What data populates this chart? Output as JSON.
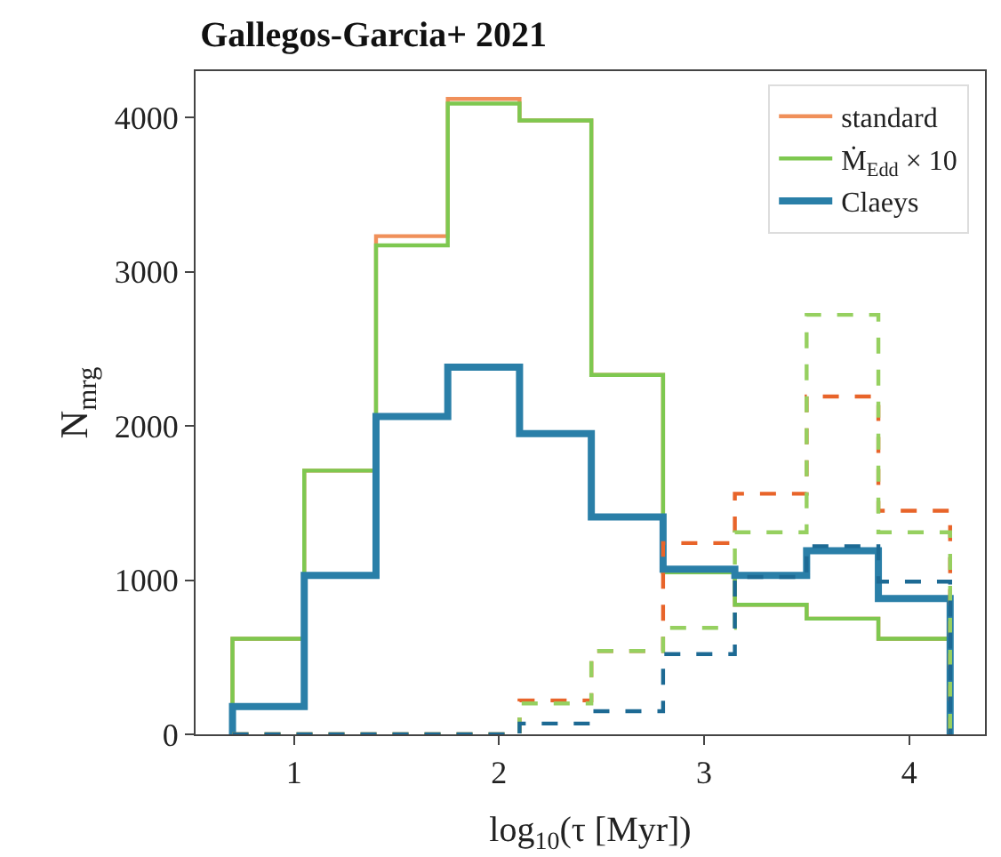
{
  "chart_data": {
    "type": "histogram",
    "title": "Gallegos-Garcia+ 2021",
    "xlabel": "log$_{10}$(τ [Myr])",
    "ylabel": "N$_{mrg}$",
    "bins": [
      0.7,
      1.05,
      1.4,
      1.75,
      2.1,
      2.45,
      2.8,
      3.15,
      3.5,
      3.85,
      4.2
    ],
    "series": [
      {
        "name": "standard",
        "color": "#f0905a",
        "values": [
          620,
          1710,
          3230,
          4120,
          3980,
          2330,
          1050,
          840,
          750,
          620
        ]
      },
      {
        "name": "Ṁ$_{Edd}$ × 10",
        "color": "#7ec850",
        "values": [
          620,
          1710,
          3170,
          4090,
          3980,
          2330,
          1050,
          840,
          750,
          620
        ]
      },
      {
        "name": "Claeys",
        "color": "#2a7fa8",
        "values": [
          180,
          1030,
          2060,
          2380,
          1950,
          1410,
          1070,
          1030,
          1190,
          880
        ]
      },
      {
        "color": "#e8642a",
        "line_style": "dashed",
        "values": [
          0,
          0,
          0,
          0,
          220,
          540,
          1240,
          1560,
          2190,
          1450
        ]
      },
      {
        "color": "#96d060",
        "line_style": "dashed",
        "values": [
          0,
          0,
          0,
          0,
          200,
          540,
          690,
          1310,
          2720,
          1310
        ]
      },
      {
        "color": "#1d6a94",
        "line_style": "dashed",
        "values": [
          0,
          0,
          0,
          0,
          70,
          150,
          520,
          1020,
          1220,
          990
        ]
      }
    ],
    "xlim": [
      0.52,
      4.37
    ],
    "ylim": [
      0,
      4300
    ],
    "xticks": [
      1,
      2,
      3,
      4
    ],
    "yticks": [
      0,
      1000,
      2000,
      3000,
      4000
    ],
    "grid": false,
    "legend": "top right"
  }
}
